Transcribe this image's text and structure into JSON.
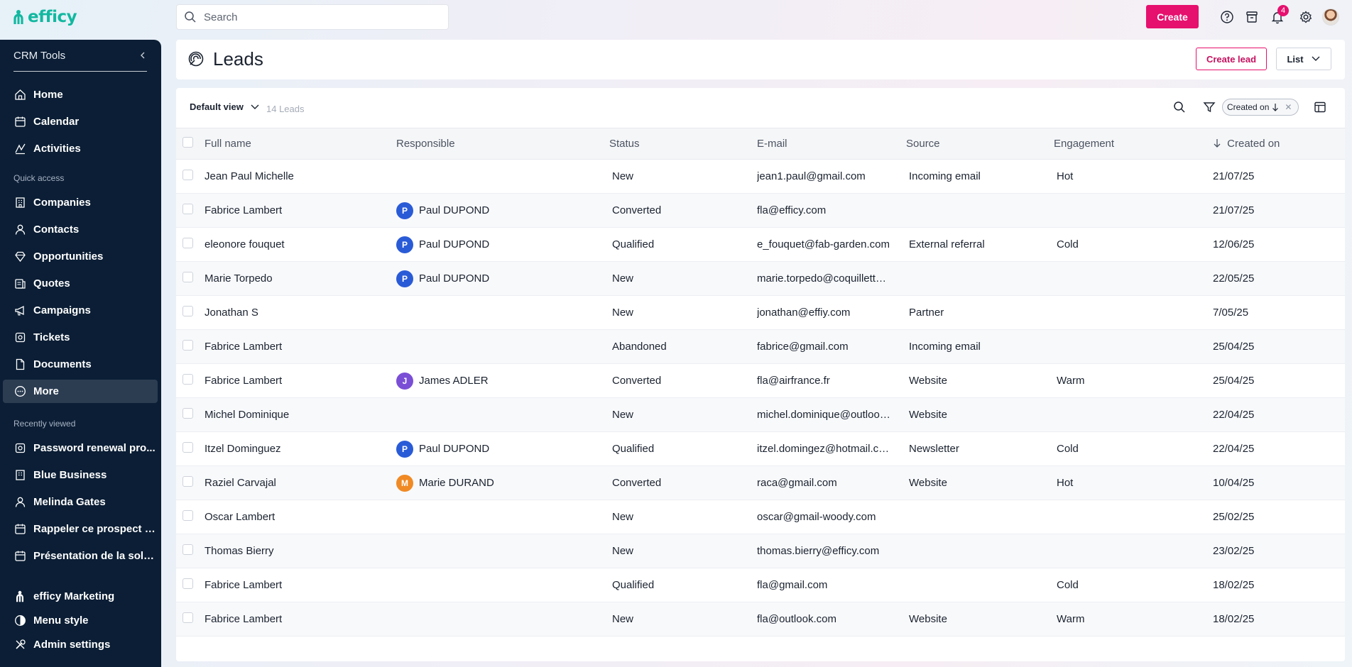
{
  "app": {
    "logo_text": "efficy"
  },
  "topbar": {
    "search_placeholder": "Search",
    "create_label": "Create",
    "notification_count": "4",
    "icons": [
      "help-icon",
      "archive-icon",
      "bell-icon",
      "gear-icon"
    ]
  },
  "sidebar": {
    "title": "CRM Tools",
    "main_items": [
      {
        "label": "Home",
        "icon": "home-icon"
      },
      {
        "label": "Calendar",
        "icon": "calendar-icon"
      },
      {
        "label": "Activities",
        "icon": "activities-icon"
      }
    ],
    "quick_access_label": "Quick access",
    "quick_items": [
      {
        "label": "Companies",
        "icon": "building-icon"
      },
      {
        "label": "Contacts",
        "icon": "user-icon"
      },
      {
        "label": "Opportunities",
        "icon": "diamond-icon"
      },
      {
        "label": "Quotes",
        "icon": "quote-icon"
      },
      {
        "label": "Campaigns",
        "icon": "megaphone-icon"
      },
      {
        "label": "Tickets",
        "icon": "ticket-icon"
      },
      {
        "label": "Documents",
        "icon": "document-icon"
      },
      {
        "label": "More",
        "icon": "more-icon",
        "active": true
      }
    ],
    "recent_label": "Recently viewed",
    "recent_items": [
      {
        "label": "Password renewal pro...",
        "icon": "ticket-icon"
      },
      {
        "label": "Blue Business",
        "icon": "building-icon"
      },
      {
        "label": "Melinda Gates",
        "icon": "user-icon"
      },
      {
        "label": "Rappeler ce prospect p...",
        "icon": "calendar-icon"
      },
      {
        "label": "Présentation de la solu...",
        "icon": "calendar-icon"
      }
    ],
    "footer_items": [
      {
        "label": "efficy Marketing",
        "icon": "efficy-icon"
      },
      {
        "label": "Menu style",
        "icon": "contrast-icon"
      },
      {
        "label": "Admin settings",
        "icon": "tools-icon"
      }
    ]
  },
  "page": {
    "title": "Leads",
    "create_lead_label": "Create lead",
    "view_mode_label": "List"
  },
  "listview": {
    "view_label": "Default view",
    "count_label": "14 Leads",
    "sort_chip_label": "Created on",
    "columns": [
      "Full name",
      "Responsible",
      "Status",
      "E-mail",
      "Source",
      "Engagement",
      "Created on"
    ],
    "rows": [
      {
        "name": "Jean Paul Michelle",
        "responsible": "",
        "initial": "",
        "avatar_color": "",
        "status": "New",
        "email": "jean1.paul@gmail.com",
        "source": "Incoming email",
        "engagement": "Hot",
        "created": "21/07/25"
      },
      {
        "name": "Fabrice Lambert",
        "responsible": "Paul DUPOND",
        "initial": "P",
        "avatar_color": "#2a5bd7",
        "status": "Converted",
        "email": "fla@efficy.com",
        "source": "",
        "engagement": "",
        "created": "21/07/25"
      },
      {
        "name": "eleonore fouquet",
        "responsible": "Paul DUPOND",
        "initial": "P",
        "avatar_color": "#2a5bd7",
        "status": "Qualified",
        "email": "e_fouquet@fab-garden.com",
        "source": "External referral",
        "engagement": "Cold",
        "created": "12/06/25"
      },
      {
        "name": "Marie Torpedo",
        "responsible": "Paul DUPOND",
        "initial": "P",
        "avatar_color": "#2a5bd7",
        "status": "New",
        "email": "marie.torpedo@coquillette....",
        "source": "",
        "engagement": "",
        "created": "22/05/25"
      },
      {
        "name": "Jonathan S",
        "responsible": "",
        "initial": "",
        "avatar_color": "",
        "status": "New",
        "email": "jonathan@effiy.com",
        "source": "Partner",
        "engagement": "",
        "created": "7/05/25"
      },
      {
        "name": "Fabrice Lambert",
        "responsible": "",
        "initial": "",
        "avatar_color": "",
        "status": "Abandoned",
        "email": "fabrice@gmail.com",
        "source": "Incoming email",
        "engagement": "",
        "created": "25/04/25"
      },
      {
        "name": "Fabrice Lambert",
        "responsible": "James ADLER",
        "initial": "J",
        "avatar_color": "#7a4fd6",
        "status": "Converted",
        "email": "fla@airfrance.fr",
        "source": "Website",
        "engagement": "Warm",
        "created": "25/04/25"
      },
      {
        "name": "Michel Dominique",
        "responsible": "",
        "initial": "",
        "avatar_color": "",
        "status": "New",
        "email": "michel.dominique@outlook...",
        "source": "Website",
        "engagement": "",
        "created": "22/04/25"
      },
      {
        "name": "Itzel Dominguez",
        "responsible": "Paul DUPOND",
        "initial": "P",
        "avatar_color": "#2a5bd7",
        "status": "Qualified",
        "email": "itzel.domingez@hotmail.com",
        "source": "Newsletter",
        "engagement": "Cold",
        "created": "22/04/25"
      },
      {
        "name": "Raziel Carvajal",
        "responsible": "Marie DURAND",
        "initial": "M",
        "avatar_color": "#f08a24",
        "status": "Converted",
        "email": "raca@gmail.com",
        "source": "Website",
        "engagement": "Hot",
        "created": "10/04/25"
      },
      {
        "name": "Oscar Lambert",
        "responsible": "",
        "initial": "",
        "avatar_color": "",
        "status": "New",
        "email": "oscar@gmail-woody.com",
        "source": "",
        "engagement": "",
        "created": "25/02/25"
      },
      {
        "name": "Thomas Bierry",
        "responsible": "",
        "initial": "",
        "avatar_color": "",
        "status": "New",
        "email": "thomas.bierry@efficy.com",
        "source": "",
        "engagement": "",
        "created": "23/02/25"
      },
      {
        "name": "Fabrice Lambert",
        "responsible": "",
        "initial": "",
        "avatar_color": "",
        "status": "Qualified",
        "email": "fla@gmail.com",
        "source": "",
        "engagement": "Cold",
        "created": "18/02/25"
      },
      {
        "name": "Fabrice Lambert",
        "responsible": "",
        "initial": "",
        "avatar_color": "",
        "status": "New",
        "email": "fla@outlook.com",
        "source": "Website",
        "engagement": "Warm",
        "created": "18/02/25"
      }
    ]
  },
  "colors": {
    "brand": "#12b8a0",
    "accent": "#e6106e",
    "sidebar_bg": "#0b1e35"
  }
}
